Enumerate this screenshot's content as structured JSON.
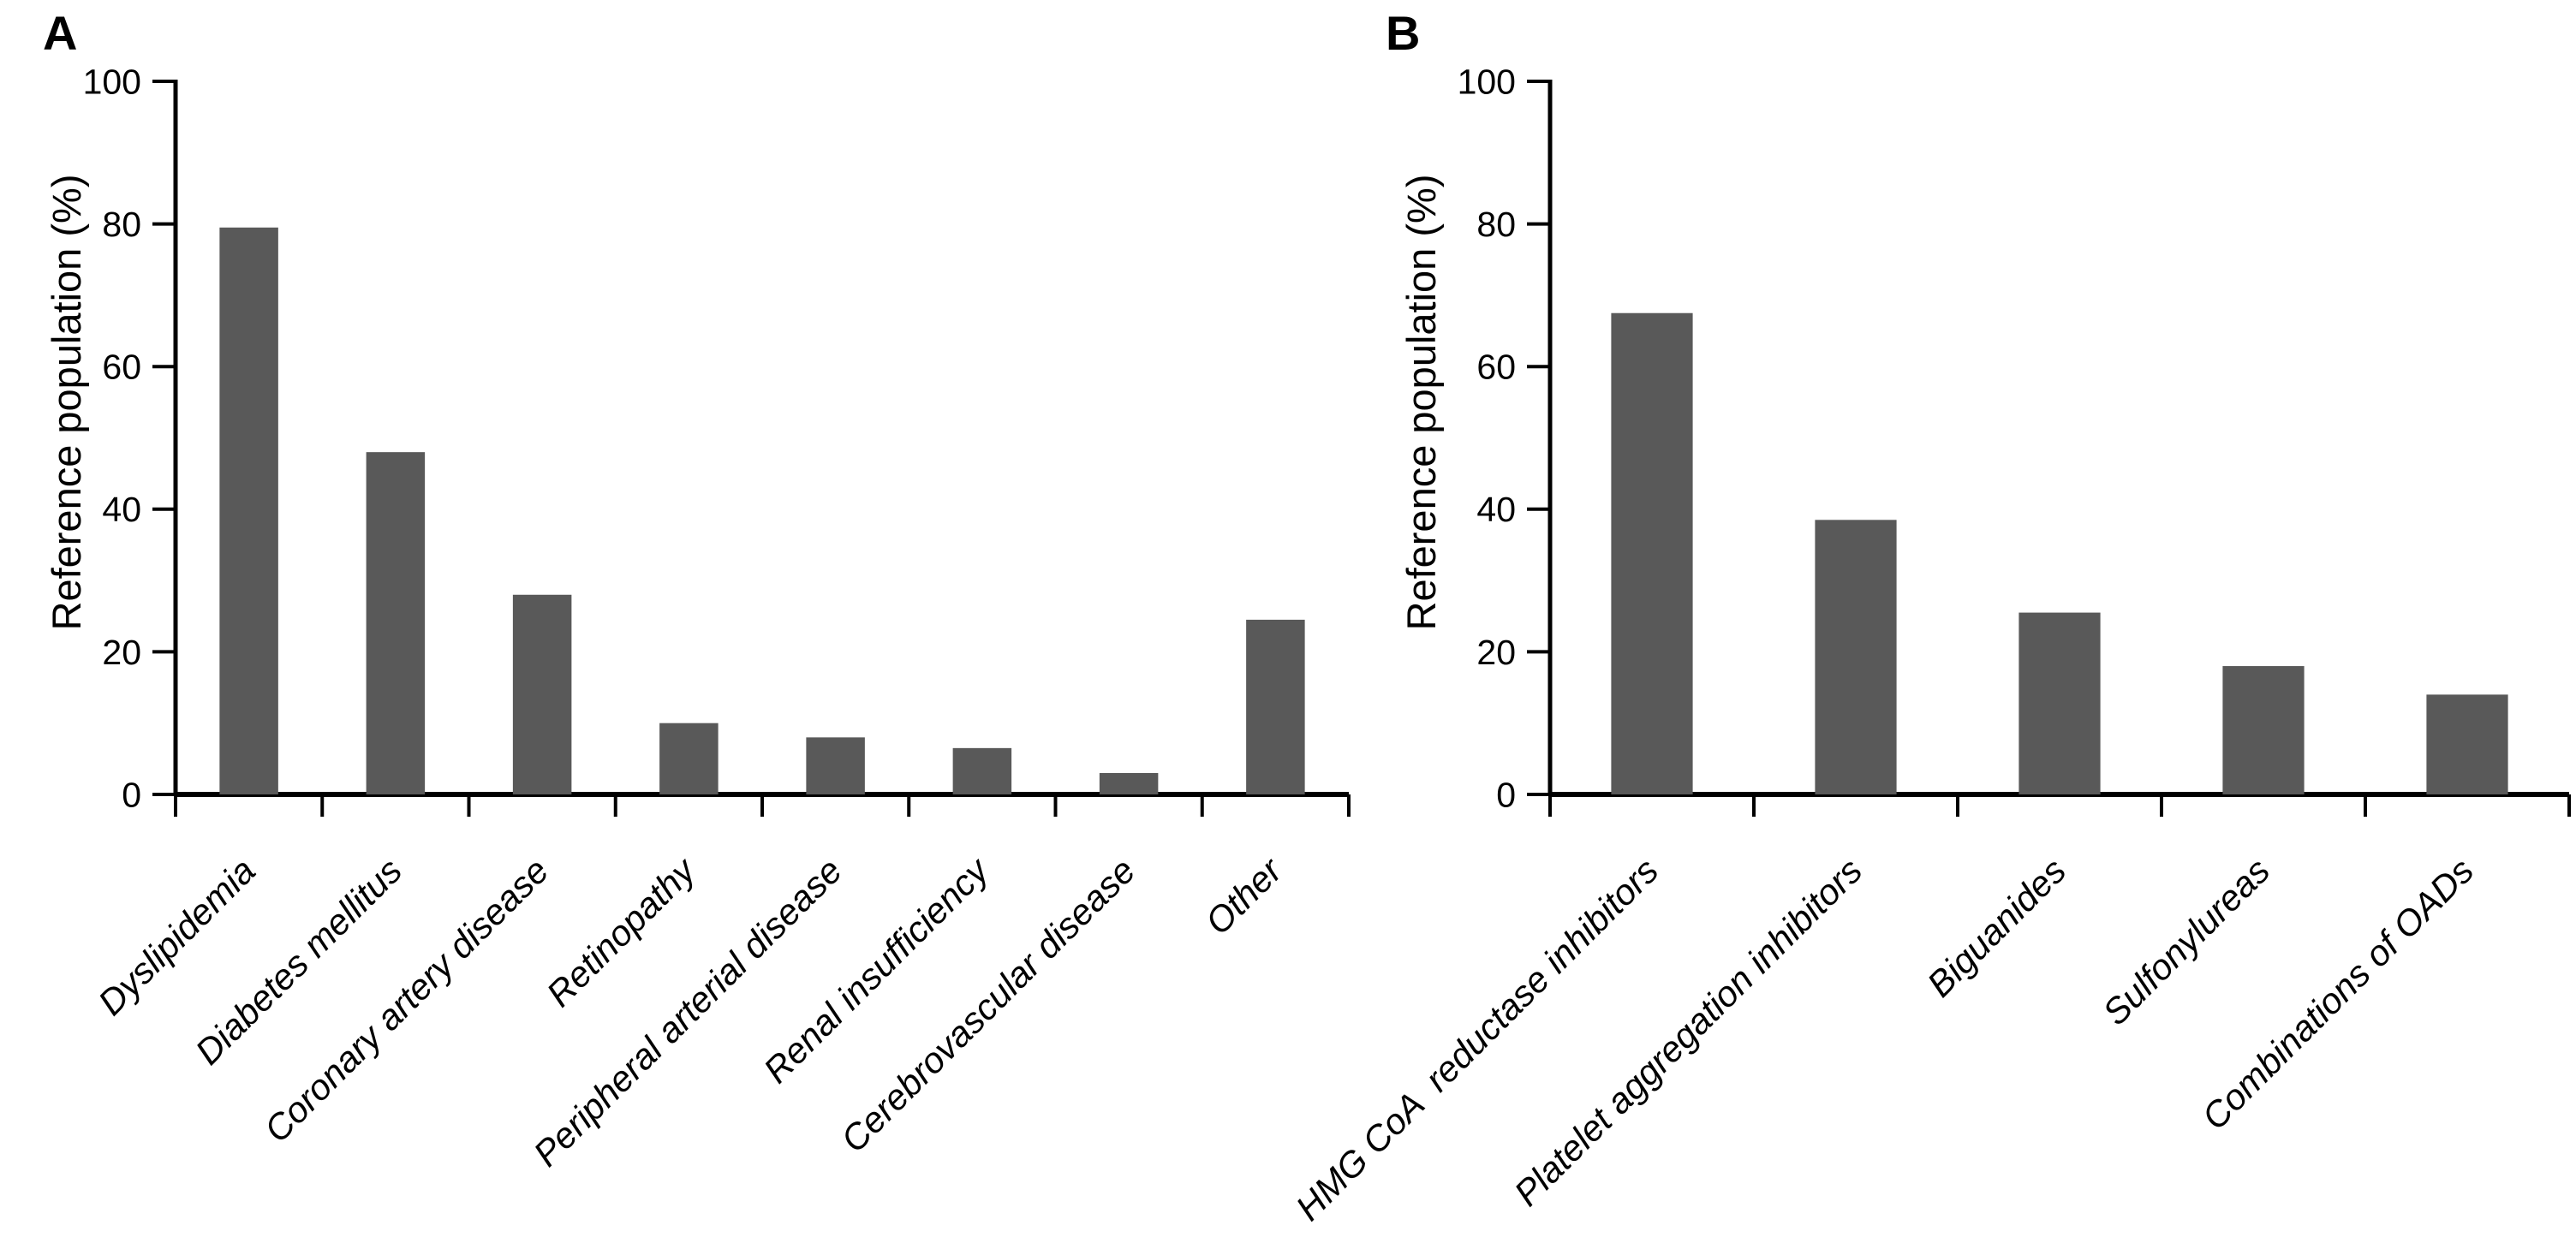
{
  "figure": {
    "background_color": "#ffffff",
    "axis_color": "#000000",
    "bar_color": "#595959"
  },
  "chart_data": [
    {
      "type": "bar",
      "panel_label": "A",
      "title": "",
      "xlabel": "",
      "ylabel": "Reference population (%)",
      "ylim": [
        0,
        100
      ],
      "yticks": [
        0,
        20,
        40,
        60,
        80,
        100
      ],
      "grid": false,
      "legend": false,
      "categories": [
        "Dyslipidemia",
        "Diabetes mellitus",
        "Coronary artery disease",
        "Retinopathy",
        "Peripheral arterial disease",
        "Renal insufficiency",
        "Cerebrovascular disease",
        "Other"
      ],
      "values": [
        79.5,
        48,
        28,
        10,
        8,
        6.5,
        3,
        24.5
      ],
      "bar_color": "#595959"
    },
    {
      "type": "bar",
      "panel_label": "B",
      "title": "",
      "xlabel": "",
      "ylabel": "Reference population (%)",
      "ylim": [
        0,
        100
      ],
      "yticks": [
        0,
        20,
        40,
        60,
        80,
        100
      ],
      "grid": false,
      "legend": false,
      "categories": [
        "HMG CoA  reductase inhibitors",
        "Platelet aggregation inhibitors",
        "Biguanides",
        "Sulfonylureas",
        "Combinations of OADs"
      ],
      "values": [
        67.5,
        38.5,
        25.5,
        18,
        14
      ],
      "bar_color": "#595959"
    }
  ]
}
